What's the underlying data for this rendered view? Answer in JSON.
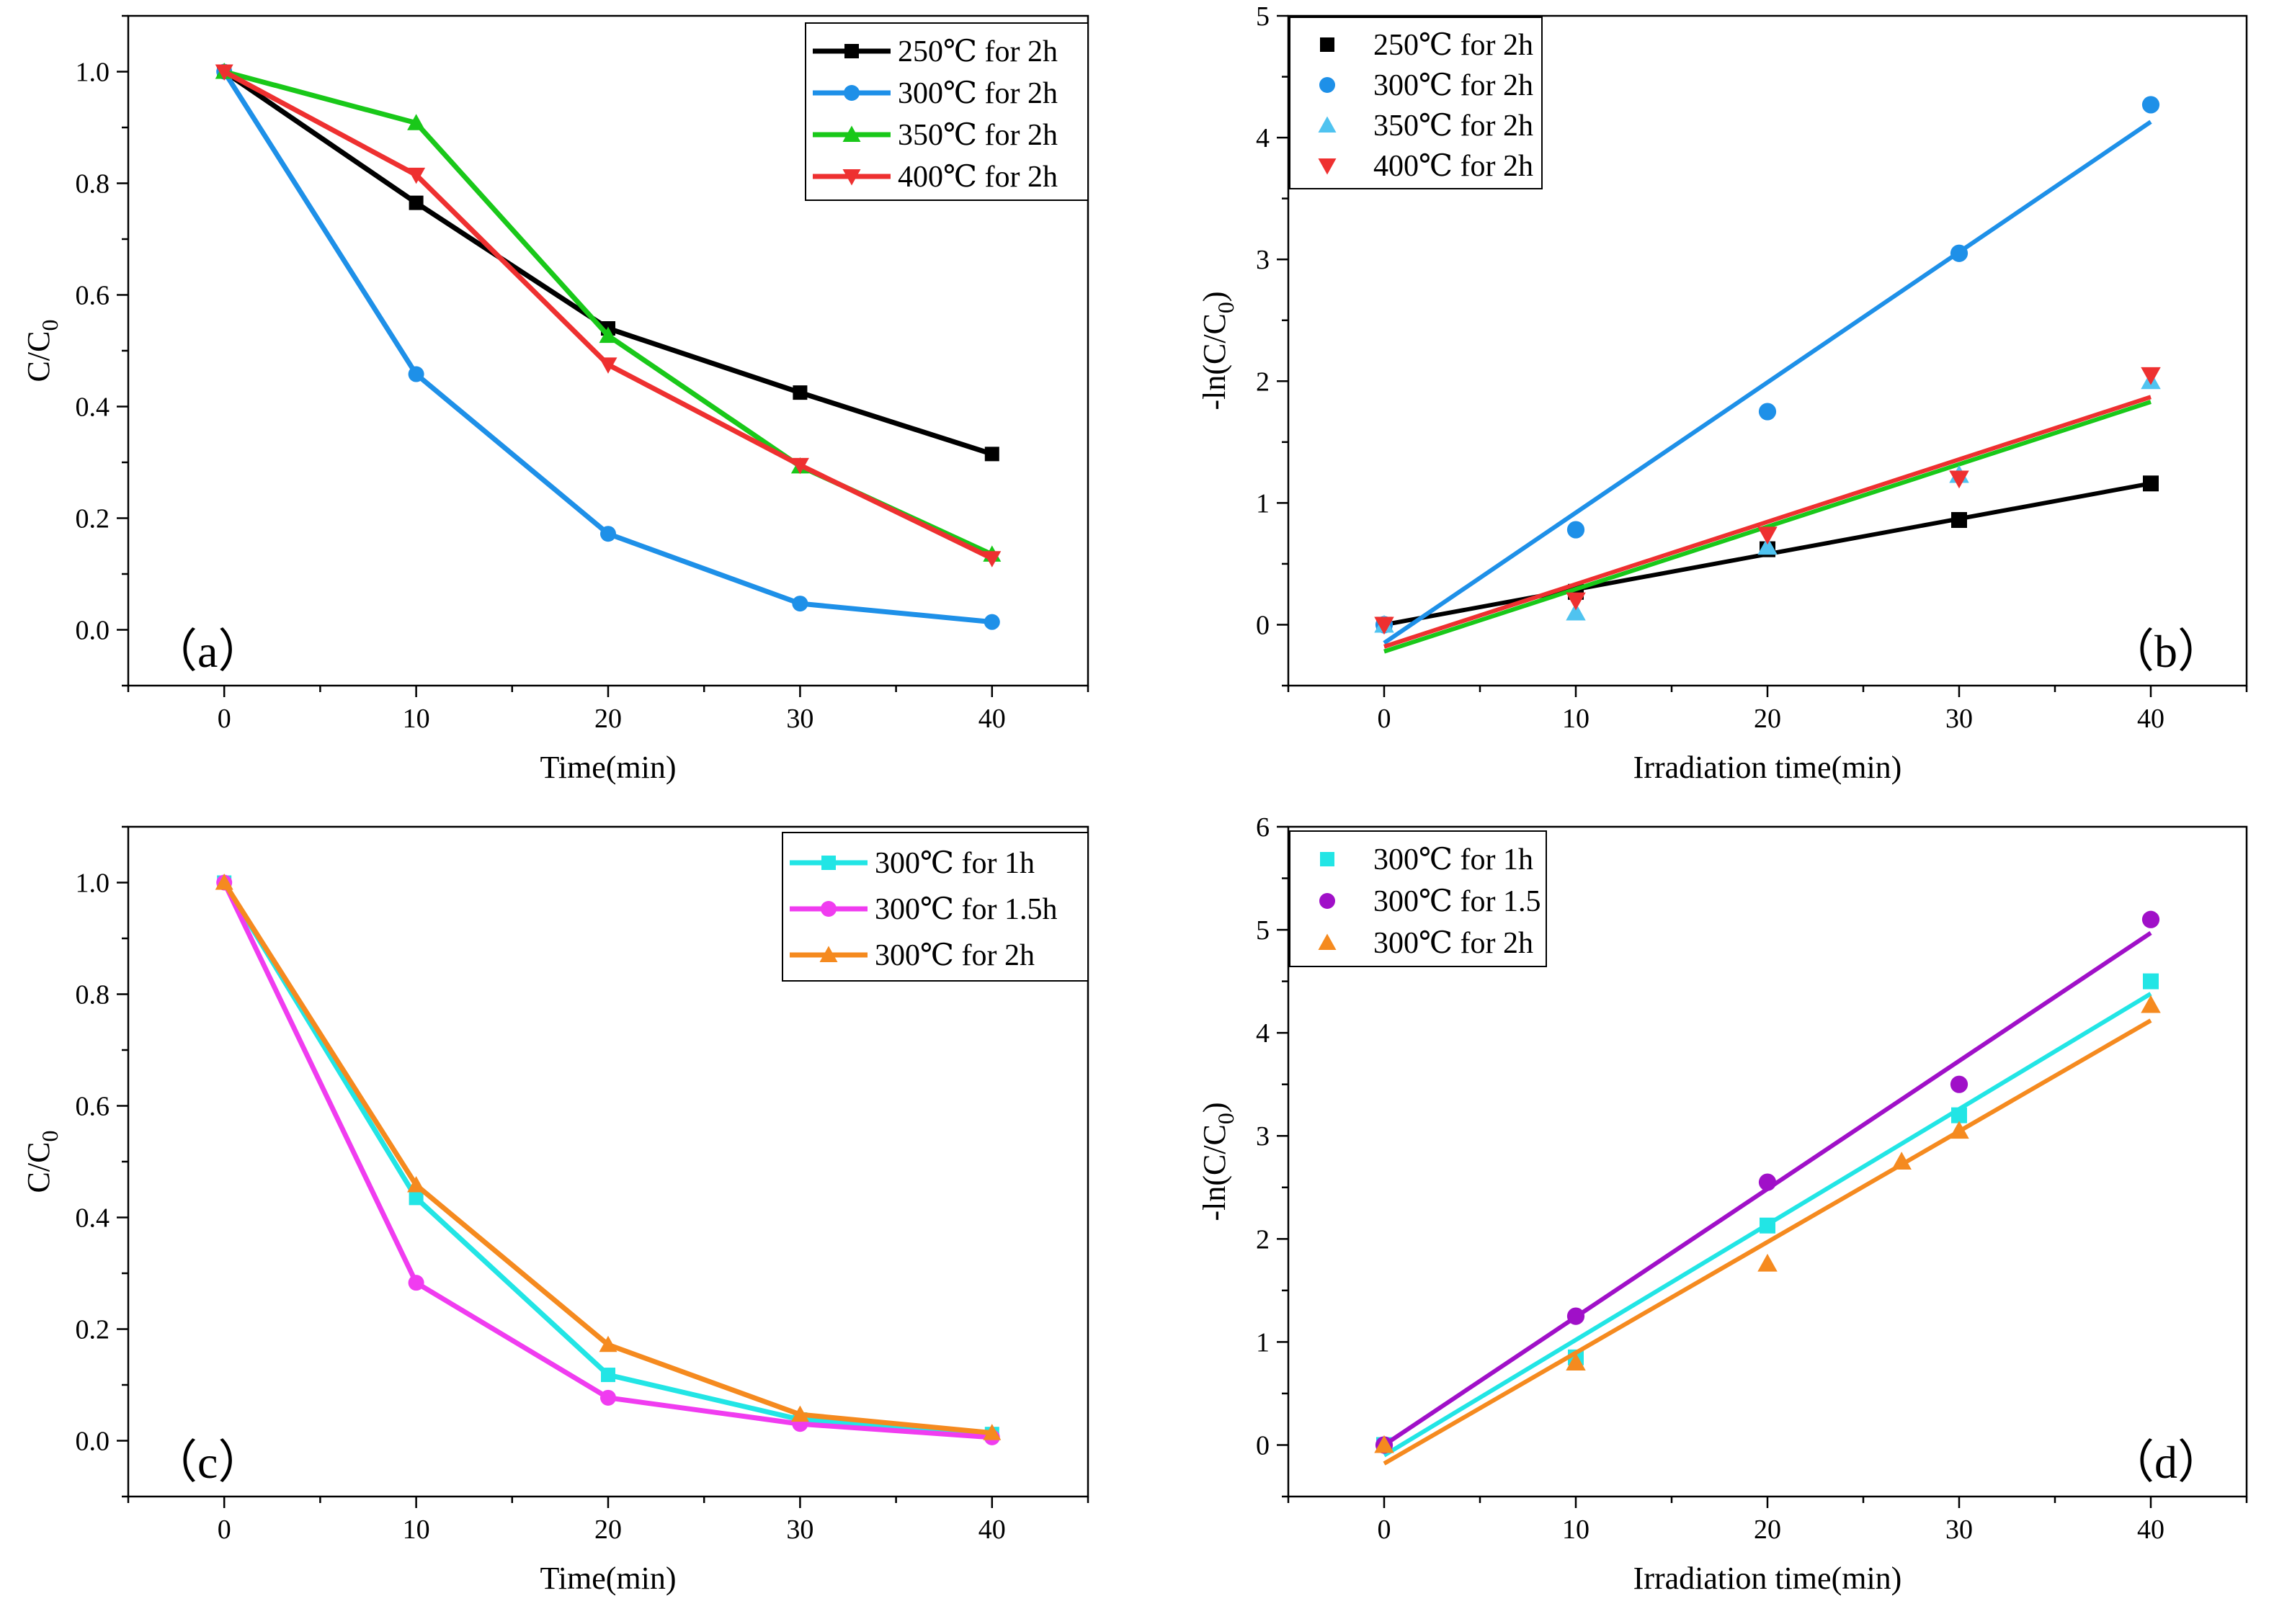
{
  "figure": {
    "background": "#ffffff"
  },
  "chart_data": [
    {
      "id": "a",
      "type": "line",
      "panel_label": "（a）",
      "xlabel": "Time(min)",
      "ylabel": "C/C0",
      "xlim": [
        -5,
        45
      ],
      "ylim": [
        -0.1,
        1.1
      ],
      "xticks": [
        0,
        10,
        20,
        30,
        40
      ],
      "yticks": [
        0.0,
        0.2,
        0.4,
        0.6,
        0.8,
        1.0
      ],
      "ytick_labels": [
        "0.0",
        "0.2",
        "0.4",
        "0.6",
        "0.8",
        "1.0"
      ],
      "legend_position": "top-right",
      "legend_style": "line",
      "series": [
        {
          "name": "250℃ for 2h",
          "color": "#000000",
          "marker": "square",
          "x": [
            0,
            10,
            20,
            30,
            40
          ],
          "y": [
            1.0,
            0.765,
            0.54,
            0.425,
            0.315
          ]
        },
        {
          "name": "300℃ for 2h",
          "color": "#1E90E8",
          "marker": "circle",
          "x": [
            0,
            10,
            20,
            30,
            40
          ],
          "y": [
            1.0,
            0.458,
            0.172,
            0.047,
            0.014
          ]
        },
        {
          "name": "350℃ for 2h",
          "color": "#19C819",
          "marker": "triangle-up",
          "x": [
            0,
            10,
            20,
            30,
            40
          ],
          "y": [
            1.0,
            0.908,
            0.527,
            0.293,
            0.135
          ]
        },
        {
          "name": "400℃ for 2h",
          "color": "#EE3030",
          "marker": "triangle-down",
          "x": [
            0,
            10,
            20,
            30,
            40
          ],
          "y": [
            1.0,
            0.815,
            0.475,
            0.295,
            0.128
          ]
        }
      ]
    },
    {
      "id": "b",
      "type": "scatter",
      "panel_label": "（b）",
      "xlabel": "Irradiation time(min)",
      "ylabel": "-ln(C/C0)",
      "xlim": [
        -5,
        45
      ],
      "ylim": [
        -0.5,
        5
      ],
      "xticks": [
        0,
        10,
        20,
        30,
        40
      ],
      "yticks": [
        0,
        1,
        2,
        3,
        4,
        5
      ],
      "ytick_labels": [
        "0",
        "1",
        "2",
        "3",
        "4",
        "5"
      ],
      "legend_position": "top-left",
      "legend_style": "marker",
      "series": [
        {
          "name": "250℃ for 2h",
          "color": "#000000",
          "marker": "square",
          "x": [
            0,
            10,
            20,
            30,
            40
          ],
          "y": [
            0.0,
            0.27,
            0.62,
            0.86,
            1.16
          ],
          "fit": [
            0.0,
            1.16
          ]
        },
        {
          "name": "300℃ for 2h",
          "color": "#1E90E8",
          "marker": "circle",
          "x": [
            0,
            10,
            20,
            30,
            40
          ],
          "y": [
            0.0,
            0.78,
            1.75,
            3.05,
            4.27
          ],
          "fit": [
            -0.15,
            4.13
          ]
        },
        {
          "name": "350℃ for 2h",
          "color": "#4FC3F0",
          "marker": "triangle-up",
          "x": [
            0,
            10,
            20,
            30,
            40
          ],
          "y": [
            0.0,
            0.1,
            0.64,
            1.23,
            2.0
          ],
          "fit": [
            -0.22,
            1.83
          ],
          "fit_color": "#19C819"
        },
        {
          "name": "400℃ for 2h",
          "color": "#EE3030",
          "marker": "triangle-down",
          "x": [
            0,
            10,
            20,
            30,
            40
          ],
          "y": [
            0.0,
            0.2,
            0.74,
            1.2,
            2.05
          ],
          "fit": [
            -0.18,
            1.87
          ]
        }
      ]
    },
    {
      "id": "c",
      "type": "line",
      "panel_label": "（c）",
      "xlabel": "Time(min)",
      "ylabel": "C/C0",
      "xlim": [
        -5,
        45
      ],
      "ylim": [
        -0.1,
        1.1
      ],
      "xticks": [
        0,
        10,
        20,
        30,
        40
      ],
      "yticks": [
        0.0,
        0.2,
        0.4,
        0.6,
        0.8,
        1.0
      ],
      "ytick_labels": [
        "0.0",
        "0.2",
        "0.4",
        "0.6",
        "0.8",
        "1.0"
      ],
      "legend_position": "top-right",
      "legend_style": "line",
      "series": [
        {
          "name": "300℃ for 1h",
          "color": "#22E5E5",
          "marker": "square",
          "x": [
            0,
            10,
            20,
            30,
            40
          ],
          "y": [
            1.0,
            0.435,
            0.118,
            0.038,
            0.012
          ]
        },
        {
          "name": "300℃ for 1.5h",
          "color": "#F03CF0",
          "marker": "circle",
          "x": [
            0,
            10,
            20,
            30,
            40
          ],
          "y": [
            1.0,
            0.283,
            0.077,
            0.03,
            0.006
          ]
        },
        {
          "name": "300℃ for 2h",
          "color": "#F58A1F",
          "marker": "triangle-up",
          "x": [
            0,
            10,
            20,
            30,
            40
          ],
          "y": [
            1.0,
            0.458,
            0.172,
            0.047,
            0.014
          ]
        }
      ]
    },
    {
      "id": "d",
      "type": "scatter",
      "panel_label": "（d）",
      "xlabel": "Irradiation time(min)",
      "ylabel": "-ln(C/C0)",
      "xlim": [
        -5,
        45
      ],
      "ylim": [
        -0.5,
        6
      ],
      "xticks": [
        0,
        10,
        20,
        30,
        40
      ],
      "yticks": [
        0,
        1,
        2,
        3,
        4,
        5,
        6
      ],
      "ytick_labels": [
        "0",
        "1",
        "2",
        "3",
        "4",
        "5",
        "6"
      ],
      "legend_position": "top-left",
      "legend_style": "marker",
      "series": [
        {
          "name": "300℃ for 1h",
          "color": "#22E5E5",
          "marker": "square",
          "x": [
            0,
            10,
            20,
            30,
            40
          ],
          "y": [
            0.0,
            0.85,
            2.13,
            3.2,
            4.5
          ],
          "fit": [
            -0.1,
            4.38
          ]
        },
        {
          "name": "300℃ for 1.5",
          "color": "#A010C8",
          "marker": "circle",
          "x": [
            0,
            10,
            20,
            30,
            40
          ],
          "y": [
            0.0,
            1.25,
            2.55,
            3.5,
            5.1
          ],
          "fit": [
            0.0,
            4.97
          ]
        },
        {
          "name": "300℃ for 2h",
          "color": "#F58A1F",
          "marker": "triangle-up",
          "x": [
            0,
            10,
            20,
            27,
            30,
            40
          ],
          "y": [
            0.0,
            0.8,
            1.76,
            2.75,
            3.05,
            4.27
          ],
          "fit": [
            -0.18,
            4.12
          ]
        }
      ]
    }
  ]
}
